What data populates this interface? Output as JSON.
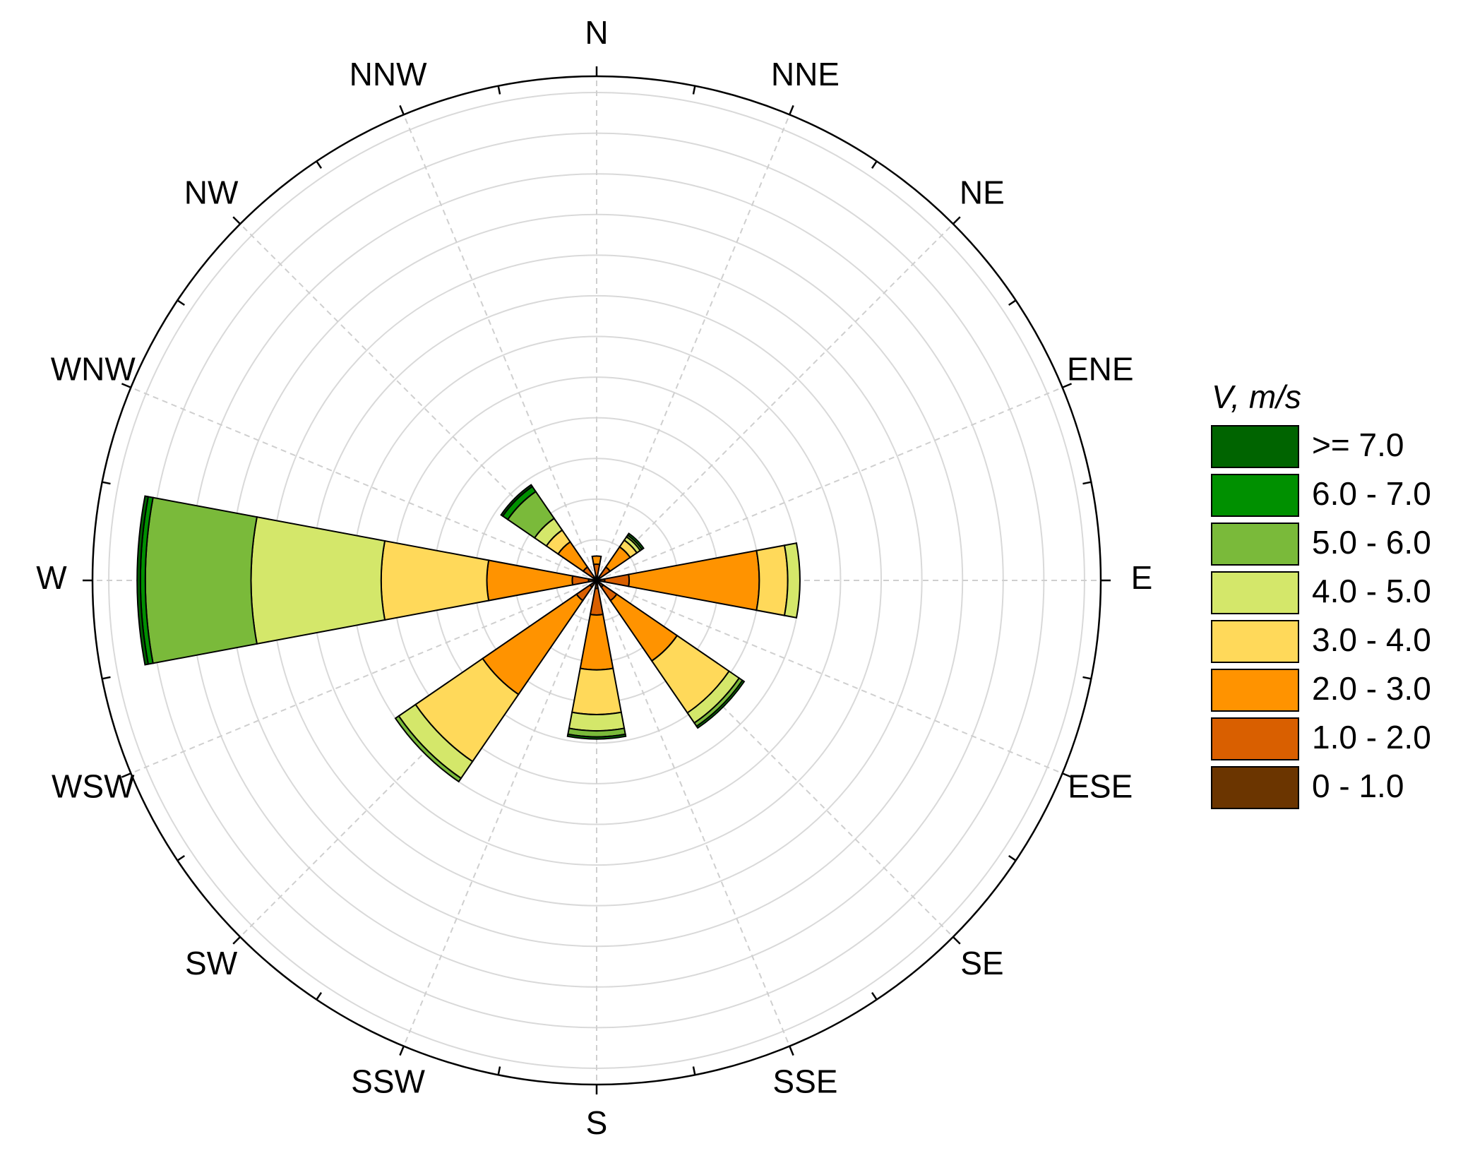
{
  "chart_data": {
    "type": "windrose",
    "categories": [
      "N",
      "NNE",
      "NE",
      "ENE",
      "E",
      "ESE",
      "SE",
      "SSE",
      "S",
      "SSW",
      "SW",
      "WSW",
      "W",
      "WNW",
      "NW",
      "NNW"
    ],
    "legend_title": "V, m/s",
    "rlim": [
      0,
      12.4
    ],
    "rticks": [
      1,
      2,
      3,
      4,
      5,
      6,
      7,
      8,
      9,
      10,
      11,
      12
    ],
    "series": [
      {
        "name": "0 - 1.0",
        "color": "#6b3500",
        "values": [
          0.1,
          0,
          0.1,
          0,
          0.2,
          0,
          0.2,
          0,
          0.2,
          0,
          0.2,
          0,
          0.2,
          0,
          0.1,
          0
        ]
      },
      {
        "name": "1.0 - 2.0",
        "color": "#d95f00",
        "values": [
          0.3,
          0,
          0.3,
          0,
          0.6,
          0,
          0.4,
          0,
          0.65,
          0,
          0.4,
          0,
          0.4,
          0,
          0.3,
          0
        ]
      },
      {
        "name": "2.0 - 3.0",
        "color": "#ff9300",
        "values": [
          0.2,
          0,
          0.6,
          0,
          3.2,
          0,
          1.8,
          0,
          1.35,
          0,
          2.8,
          0,
          2.1,
          0,
          0.75,
          0
        ]
      },
      {
        "name": "3.0 - 4.0",
        "color": "#ffd95a",
        "values": [
          0,
          0,
          0.2,
          0,
          0.7,
          0,
          1.55,
          0,
          1.1,
          0,
          2.0,
          0,
          2.6,
          0,
          0.35,
          0
        ]
      },
      {
        "name": "4.0 - 5.0",
        "color": "#d4e76a",
        "values": [
          0,
          0,
          0.1,
          0,
          0.3,
          0,
          0.3,
          0,
          0.4,
          0,
          0.5,
          0,
          3.2,
          0,
          0.35,
          0
        ]
      },
      {
        "name": "5.0 - 6.0",
        "color": "#7aba3a",
        "values": [
          0,
          0,
          0.05,
          0,
          0,
          0,
          0.1,
          0,
          0.15,
          0,
          0.1,
          0,
          2.6,
          0,
          0.8,
          0
        ]
      },
      {
        "name": "6.0 - 7.0",
        "color": "#009000",
        "values": [
          0,
          0,
          0.05,
          0,
          0,
          0,
          0.05,
          0,
          0.05,
          0,
          0,
          0,
          0.12,
          0,
          0.15,
          0
        ]
      },
      {
        "name": ">= 7.0",
        "color": "#006400",
        "values": [
          0,
          0,
          0,
          0,
          0,
          0,
          0,
          0,
          0,
          0,
          0,
          0,
          0.08,
          0,
          0.05,
          0
        ]
      }
    ]
  }
}
